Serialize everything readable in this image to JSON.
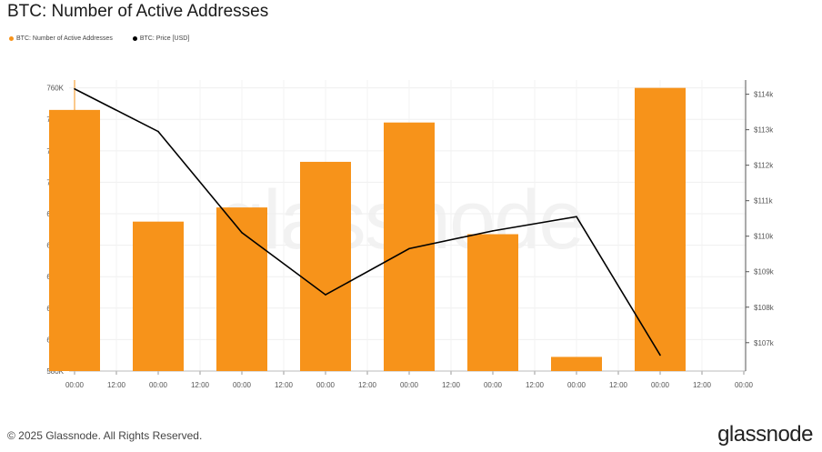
{
  "title": "BTC: Number of Active Addresses",
  "legend": [
    {
      "label": "BTC: Number of Active Addresses",
      "color": "#f7931a"
    },
    {
      "label": "BTC: Price [USD]",
      "color": "#000000"
    }
  ],
  "watermark": "glassnode",
  "footer": "© 2025 Glassnode. All Rights Reserved.",
  "brand": "glassnode",
  "chart_data": {
    "type": "bar",
    "x_tick_labels": [
      "00:00",
      "12:00",
      "00:00",
      "12:00",
      "00:00",
      "12:00",
      "00:00",
      "12:00",
      "00:00",
      "12:00",
      "00:00",
      "12:00",
      "00:00",
      "12:00",
      "00:00",
      "12:00",
      "00:00"
    ],
    "y_left_ticks": [
      "580K",
      "600K",
      "620K",
      "640K",
      "660K",
      "680K",
      "700K",
      "720K",
      "740K",
      "760K"
    ],
    "y_left_range": [
      580000,
      765000
    ],
    "y_right_ticks": [
      "$107k",
      "$108k",
      "$109k",
      "$110k",
      "$111k",
      "$112k",
      "$113k",
      "$114k"
    ],
    "y_right_range": [
      106200000,
      114400000
    ],
    "series": [
      {
        "name": "BTC: Number of Active Addresses",
        "type": "bar",
        "color": "#f7931a",
        "values": [
          746000,
          675000,
          684000,
          713000,
          738000,
          667000,
          589000,
          760000
        ]
      },
      {
        "name": "BTC: Price [USD]",
        "type": "line",
        "color": "#000000",
        "values": [
          114150,
          112950,
          110100,
          108350,
          109650,
          110150,
          110550,
          106650
        ]
      }
    ]
  }
}
